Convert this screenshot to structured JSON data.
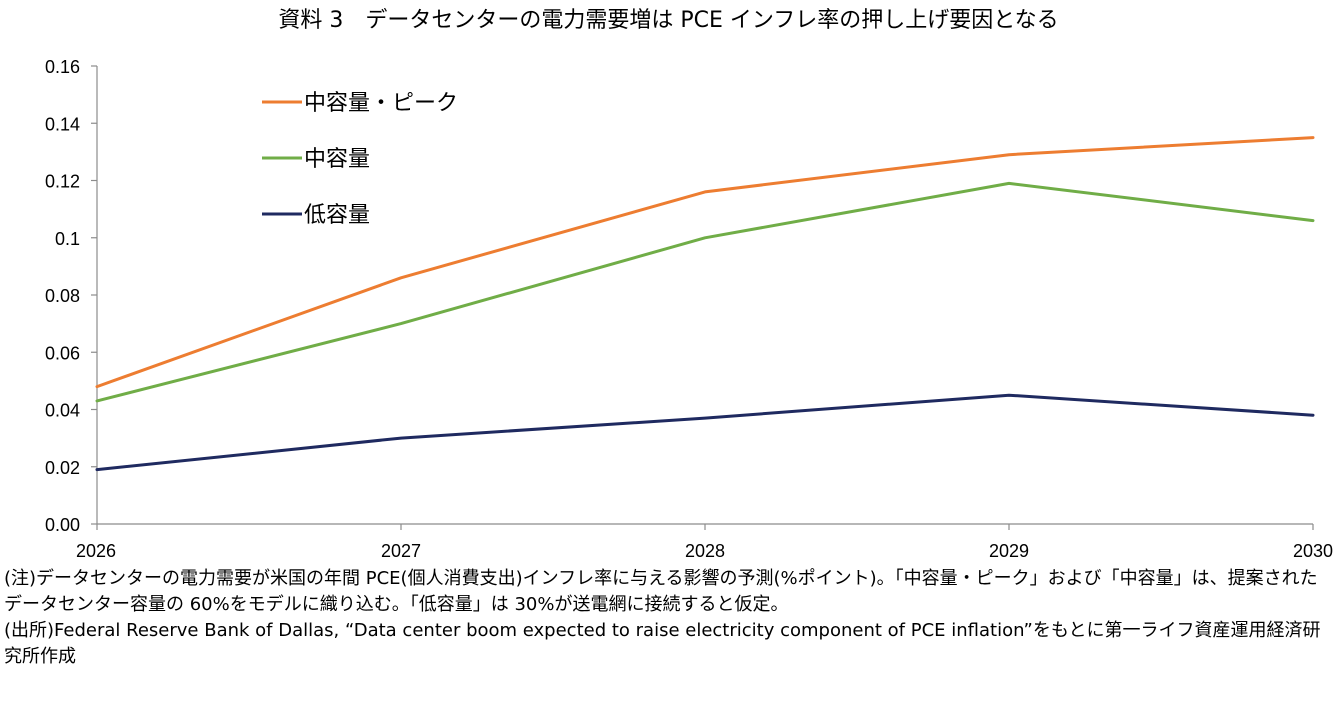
{
  "chart_data": {
    "type": "line",
    "title": "資料 3　データセンターの電力需要増は PCE インフレ率の押し上げ要因となる",
    "x": [
      "2026",
      "2027",
      "2028",
      "2029",
      "2030"
    ],
    "series": [
      {
        "name": "中容量・ピーク",
        "color": "#ed7d31",
        "values": [
          0.048,
          0.086,
          0.116,
          0.129,
          0.135
        ]
      },
      {
        "name": "中容量",
        "color": "#70ad47",
        "values": [
          0.043,
          0.07,
          0.1,
          0.119,
          0.106
        ]
      },
      {
        "name": "低容量",
        "color": "#1f2a60",
        "values": [
          0.019,
          0.03,
          0.037,
          0.045,
          0.038
        ]
      }
    ],
    "ylim": [
      0,
      0.16
    ],
    "yticks": [
      "0.00",
      "0.02",
      "0.04",
      "0.06",
      "0.08",
      "0.1",
      "0.12",
      "0.14",
      "0.16"
    ],
    "grid": false,
    "legend": "top-left",
    "xlabel": "",
    "ylabel": ""
  },
  "notes": {
    "note": "(注)データセンターの電力需要が米国の年間 PCE(個人消費支出)インフレ率に与える影響の予測(%ポイント)。「中容量・ピーク」および「中容量」は、提案されたデータセンター容量の 60%をモデルに織り込む。「低容量」は 30%が送電網に接続すると仮定。",
    "source": "(出所)Federal Reserve Bank of Dallas, “Data center boom expected to raise electricity component of PCE inflation”をもとに第一ライフ資産運用経済研究所作成"
  }
}
